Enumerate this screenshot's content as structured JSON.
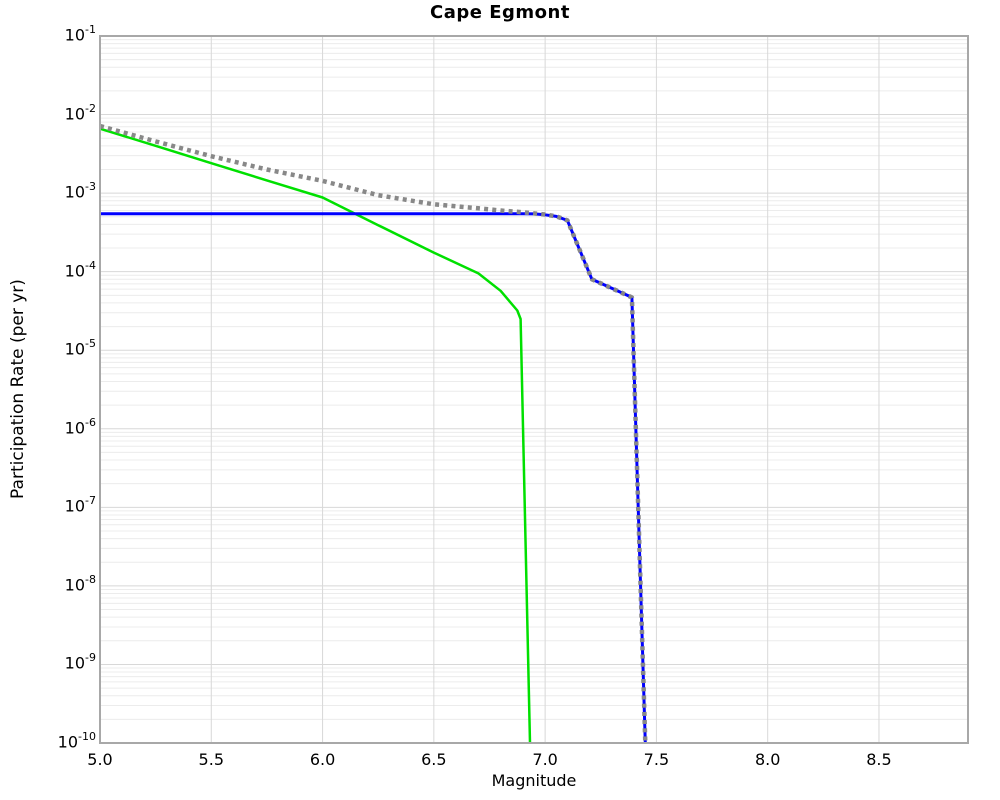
{
  "title": "Cape Egmont",
  "chart_data": {
    "type": "line",
    "title": "Cape Egmont",
    "xlabel": "Magnitude",
    "ylabel": "Participation Rate (per yr)",
    "xlim": [
      5.0,
      8.9
    ],
    "ylim": [
      1e-10,
      0.1
    ],
    "x_ticks": [
      5.0,
      5.5,
      6.0,
      6.5,
      7.0,
      7.5,
      8.0,
      8.5
    ],
    "y_tick_exponents": [
      -1,
      -2,
      -3,
      -4,
      -5,
      -6,
      -7,
      -8,
      -9,
      -10
    ],
    "grid": {
      "on": true,
      "minor_color": "#ececec",
      "major_color": "#d8d8d8",
      "vertical_color": "#d8d8d8",
      "frame_color": "#a8a8a8",
      "background": "#ffffff"
    },
    "legend": null,
    "series": [
      {
        "name": "green-solid",
        "color": "#00e000",
        "style": "solid",
        "width": 2.5,
        "points": [
          [
            5.0,
            0.0066
          ],
          [
            5.25,
            0.004
          ],
          [
            5.5,
            0.0024
          ],
          [
            5.75,
            0.00145
          ],
          [
            6.0,
            0.00088
          ],
          [
            6.25,
            0.00039
          ],
          [
            6.5,
            0.000175
          ],
          [
            6.7,
            9.5e-05
          ],
          [
            6.8,
            5.7e-05
          ],
          [
            6.875,
            3.2e-05
          ],
          [
            6.89,
            2.5e-05
          ],
          [
            6.932,
            1e-10
          ]
        ]
      },
      {
        "name": "blue-solid",
        "color": "#0000ff",
        "style": "solid",
        "width": 3,
        "points": [
          [
            5.0,
            0.000546
          ],
          [
            6.5,
            0.000546
          ],
          [
            6.9,
            0.000546
          ],
          [
            6.95,
            0.000543
          ],
          [
            7.0,
            0.00053
          ],
          [
            7.05,
            0.000505
          ],
          [
            7.1,
            0.00045
          ],
          [
            7.21,
            8e-05
          ],
          [
            7.39,
            4.7e-05
          ],
          [
            7.45,
            1e-10
          ]
        ]
      },
      {
        "name": "gray-dotted",
        "color": "#888888",
        "style": "dotted",
        "width": 4.5,
        "points": [
          [
            5.0,
            0.00715
          ],
          [
            5.25,
            0.00455
          ],
          [
            5.5,
            0.00295
          ],
          [
            5.75,
            0.002
          ],
          [
            6.0,
            0.00143
          ],
          [
            6.25,
            0.00094
          ],
          [
            6.5,
            0.00072
          ],
          [
            6.7,
            0.00064
          ],
          [
            6.8,
            0.0006
          ],
          [
            6.9,
            0.00057
          ],
          [
            6.95,
            0.000551
          ],
          [
            7.0,
            0.000535
          ],
          [
            7.05,
            0.000505
          ],
          [
            7.1,
            0.00045
          ],
          [
            7.21,
            8e-05
          ],
          [
            7.39,
            4.7e-05
          ],
          [
            7.45,
            1e-10
          ]
        ]
      }
    ]
  }
}
